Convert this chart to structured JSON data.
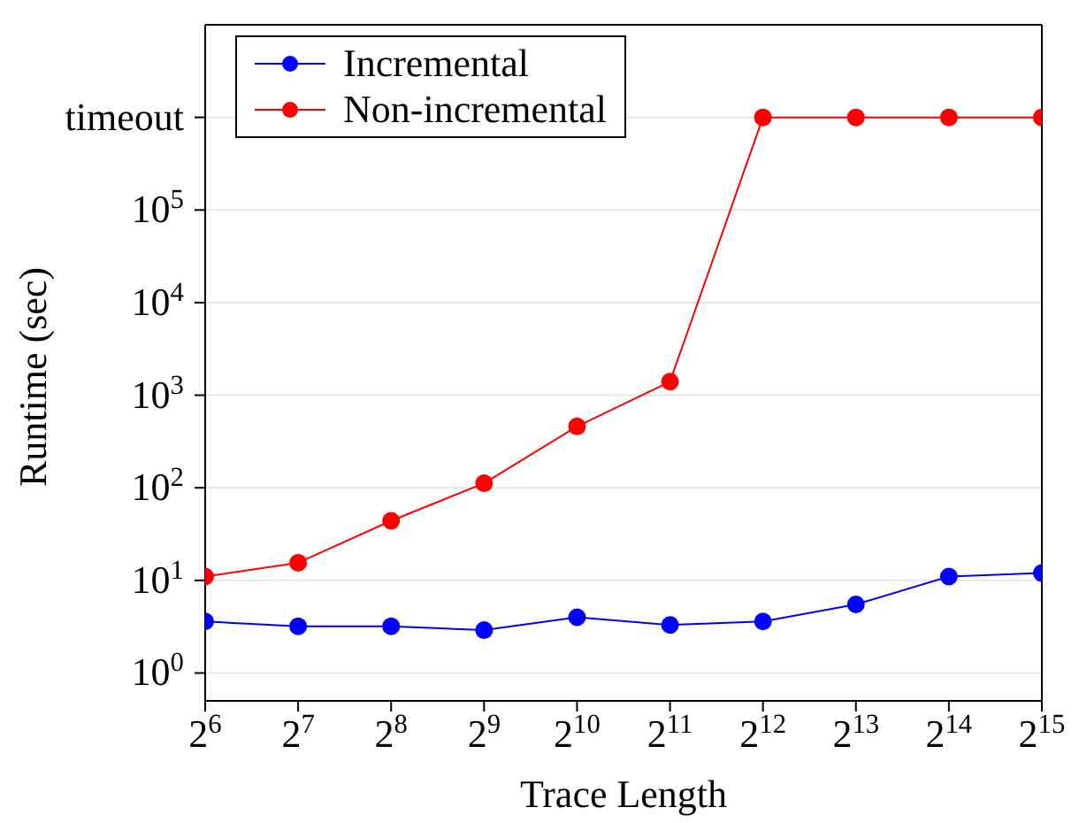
{
  "chart_data": {
    "type": "line",
    "xlabel": "Trace Length",
    "ylabel": "Runtime (sec)",
    "x": [
      64,
      128,
      256,
      512,
      1024,
      2048,
      4096,
      8192,
      16384,
      32768
    ],
    "series": [
      {
        "name": "Incremental",
        "color": "#0000ff",
        "values": [
          3.6,
          3.2,
          3.2,
          2.9,
          4.0,
          3.3,
          3.6,
          5.5,
          11,
          12
        ]
      },
      {
        "name": "Non-incremental",
        "color": "#ff0000",
        "values": [
          11,
          15.5,
          44,
          112,
          460,
          1400,
          1000000,
          1000000,
          1000000,
          1000000
        ]
      }
    ],
    "log": "xy",
    "xlim": [
      64,
      32768
    ],
    "xticks": [
      {
        "value": 64,
        "label": "2$^{6}$"
      },
      {
        "value": 128,
        "label": "2$^{7}$"
      },
      {
        "value": 256,
        "label": "2$^{8}$"
      },
      {
        "value": 512,
        "label": "2$^{9}$"
      },
      {
        "value": 1024,
        "label": "2$^{10}$"
      },
      {
        "value": 2048,
        "label": "2$^{11}$"
      },
      {
        "value": 4096,
        "label": "2$^{12}$"
      },
      {
        "value": 8192,
        "label": "2$^{13}$"
      },
      {
        "value": 16384,
        "label": "2$^{14}$"
      },
      {
        "value": 32768,
        "label": "2$^{15}$"
      }
    ],
    "ylim": [
      0.5,
      10000000
    ],
    "yticks": [
      {
        "value": 1,
        "label": "10$^{0}$"
      },
      {
        "value": 10,
        "label": "10$^{1}$"
      },
      {
        "value": 100,
        "label": "10$^{2}$"
      },
      {
        "value": 1000,
        "label": "10$^{3}$"
      },
      {
        "value": 10000,
        "label": "10$^{4}$"
      },
      {
        "value": 100000,
        "label": "10$^{5}$"
      },
      {
        "value": 1000000,
        "label": "timeout"
      }
    ],
    "grid": "y",
    "legend": "top left",
    "marker": "circle",
    "line_style": "solid"
  }
}
